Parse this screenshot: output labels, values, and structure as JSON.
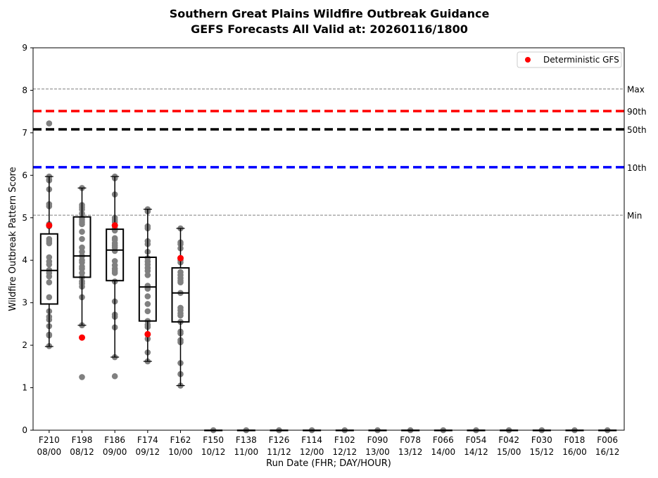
{
  "chart_data": {
    "type": "box",
    "title": "Southern Great Plains Wildfire Outbreak Guidance",
    "subtitle": "GEFS Forecasts All Valid at: 20260116/1800",
    "xlabel": "Run Date (FHR; DAY/HOUR)",
    "ylabel": "Wildfire Outbreak Pattern Score",
    "ylim": [
      0,
      9
    ],
    "yticks": [
      "0",
      "1",
      "2",
      "3",
      "4",
      "5",
      "6",
      "7",
      "8",
      "9"
    ],
    "categories": [
      {
        "fhr": "F210",
        "dh": "08/00"
      },
      {
        "fhr": "F198",
        "dh": "08/12"
      },
      {
        "fhr": "F186",
        "dh": "09/00"
      },
      {
        "fhr": "F174",
        "dh": "09/12"
      },
      {
        "fhr": "F162",
        "dh": "10/00"
      },
      {
        "fhr": "F150",
        "dh": "10/12"
      },
      {
        "fhr": "F138",
        "dh": "11/00"
      },
      {
        "fhr": "F126",
        "dh": "11/12"
      },
      {
        "fhr": "F114",
        "dh": "12/00"
      },
      {
        "fhr": "F102",
        "dh": "12/12"
      },
      {
        "fhr": "F090",
        "dh": "13/00"
      },
      {
        "fhr": "F078",
        "dh": "13/12"
      },
      {
        "fhr": "F066",
        "dh": "14/00"
      },
      {
        "fhr": "F054",
        "dh": "14/12"
      },
      {
        "fhr": "F042",
        "dh": "15/00"
      },
      {
        "fhr": "F030",
        "dh": "15/12"
      },
      {
        "fhr": "F018",
        "dh": "16/00"
      },
      {
        "fhr": "F006",
        "dh": "16/12"
      }
    ],
    "boxes": [
      {
        "q1": 2.97,
        "median": 3.76,
        "q3": 4.62,
        "whislo": 1.97,
        "whishi": 5.97,
        "deterministic": 4.82,
        "members": [
          7.22,
          5.97,
          5.9,
          5.88,
          5.67,
          5.32,
          5.27,
          4.85,
          4.8,
          4.5,
          4.45,
          4.4,
          4.07,
          3.97,
          3.9,
          3.77,
          3.7,
          3.62,
          3.48,
          3.13,
          2.8,
          2.67,
          2.6,
          2.45,
          2.25,
          2.23,
          1.98
        ]
      },
      {
        "q1": 3.6,
        "median": 4.1,
        "q3": 5.02,
        "whislo": 2.47,
        "whishi": 5.7,
        "deterministic": 2.18,
        "members": [
          5.7,
          5.3,
          5.25,
          5.2,
          5.1,
          5.0,
          4.95,
          4.9,
          4.85,
          4.67,
          4.5,
          4.3,
          4.2,
          4.1,
          4.0,
          3.95,
          3.85,
          3.8,
          3.7,
          3.6,
          3.5,
          3.45,
          3.38,
          3.13,
          2.47,
          1.25
        ]
      },
      {
        "q1": 3.52,
        "median": 4.24,
        "q3": 4.73,
        "whislo": 1.72,
        "whishi": 5.97,
        "deterministic": 4.82,
        "members": [
          5.97,
          5.93,
          5.55,
          5.0,
          4.95,
          4.9,
          4.75,
          4.7,
          4.52,
          4.48,
          4.4,
          4.35,
          4.3,
          4.22,
          3.98,
          3.88,
          3.8,
          3.75,
          3.7,
          3.5,
          3.03,
          2.72,
          2.67,
          2.42,
          1.72,
          1.27
        ]
      },
      {
        "q1": 2.57,
        "median": 3.37,
        "q3": 4.07,
        "whislo": 1.62,
        "whishi": 5.2,
        "deterministic": 2.26,
        "members": [
          5.2,
          5.15,
          4.8,
          4.75,
          4.45,
          4.38,
          4.2,
          4.05,
          3.97,
          3.9,
          3.82,
          3.75,
          3.65,
          3.4,
          3.33,
          3.15,
          2.97,
          2.8,
          2.57,
          2.48,
          2.43,
          2.25,
          2.15,
          1.83,
          1.62
        ]
      },
      {
        "q1": 2.55,
        "median": 3.23,
        "q3": 3.82,
        "whislo": 1.05,
        "whishi": 4.75,
        "deterministic": 4.05,
        "members": [
          4.75,
          4.42,
          4.38,
          4.28,
          4.0,
          3.95,
          3.72,
          3.65,
          3.58,
          3.52,
          3.48,
          3.23,
          2.88,
          2.82,
          2.75,
          2.7,
          2.55,
          2.32,
          2.28,
          2.12,
          2.07,
          1.58,
          1.32,
          1.05
        ]
      },
      {
        "q1": 0,
        "median": 0,
        "q3": 0,
        "whislo": 0,
        "whishi": 0,
        "members": [
          0
        ]
      },
      {
        "q1": 0,
        "median": 0,
        "q3": 0,
        "whislo": 0,
        "whishi": 0,
        "members": [
          0
        ]
      },
      {
        "q1": 0,
        "median": 0,
        "q3": 0,
        "whislo": 0,
        "whishi": 0,
        "members": [
          0
        ]
      },
      {
        "q1": 0,
        "median": 0,
        "q3": 0,
        "whislo": 0,
        "whishi": 0,
        "members": [
          0
        ]
      },
      {
        "q1": 0,
        "median": 0,
        "q3": 0,
        "whislo": 0,
        "whishi": 0,
        "members": [
          0
        ]
      },
      {
        "q1": 0,
        "median": 0,
        "q3": 0,
        "whislo": 0,
        "whishi": 0,
        "members": [
          0
        ]
      },
      {
        "q1": 0,
        "median": 0,
        "q3": 0,
        "whislo": 0,
        "whishi": 0,
        "members": [
          0
        ]
      },
      {
        "q1": 0,
        "median": 0,
        "q3": 0,
        "whislo": 0,
        "whishi": 0,
        "members": [
          0
        ]
      },
      {
        "q1": 0,
        "median": 0,
        "q3": 0,
        "whislo": 0,
        "whishi": 0,
        "members": [
          0
        ]
      },
      {
        "q1": 0,
        "median": 0,
        "q3": 0,
        "whislo": 0,
        "whishi": 0,
        "members": [
          0
        ]
      },
      {
        "q1": 0,
        "median": 0,
        "q3": 0,
        "whislo": 0,
        "whishi": 0,
        "members": [
          0
        ]
      },
      {
        "q1": 0,
        "median": 0,
        "q3": 0,
        "whislo": 0,
        "whishi": 0,
        "members": [
          0
        ]
      },
      {
        "q1": 0,
        "median": 0,
        "q3": 0,
        "whislo": 0,
        "whishi": 0,
        "members": [
          0
        ]
      }
    ],
    "reference_lines": [
      {
        "label": "Max",
        "value": 8.03,
        "color": "#808080",
        "style": "thin"
      },
      {
        "label": "90th",
        "value": 7.51,
        "color": "#ff0000",
        "style": "thick"
      },
      {
        "label": "50th",
        "value": 7.08,
        "color": "#000000",
        "style": "thick"
      },
      {
        "label": "10th",
        "value": 6.19,
        "color": "#0000ff",
        "style": "thick"
      },
      {
        "label": "Min",
        "value": 5.06,
        "color": "#808080",
        "style": "thin"
      }
    ],
    "legend": {
      "label": "Deterministic GFS",
      "placement": "top-right",
      "color": "#ff0000"
    },
    "member_color": "#808080"
  }
}
